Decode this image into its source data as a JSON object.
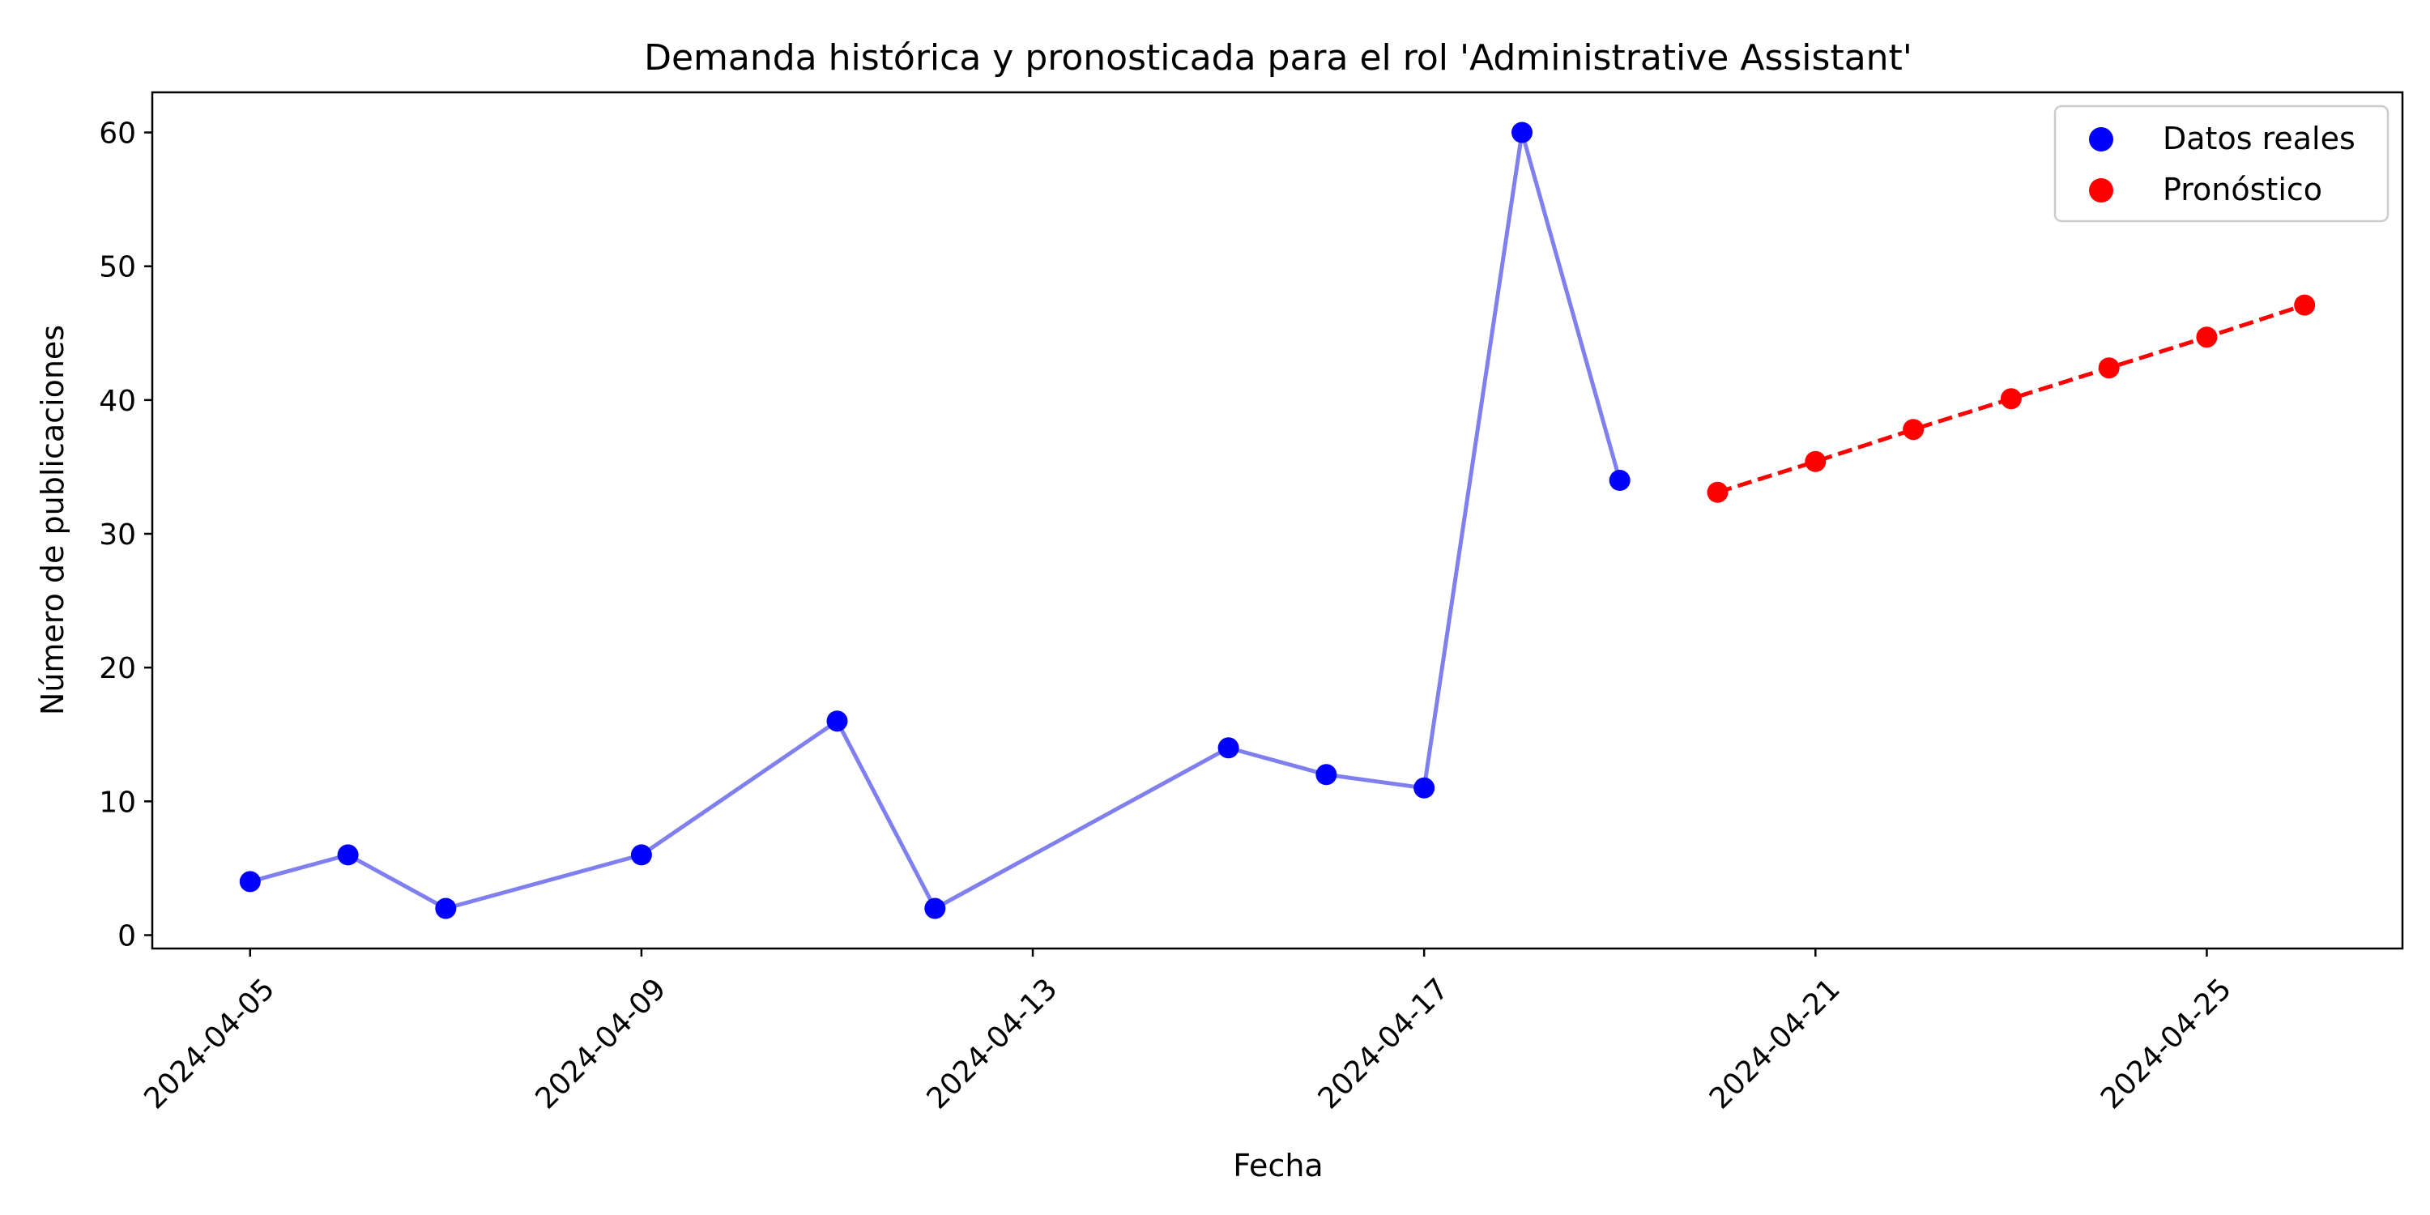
{
  "chart_data": {
    "type": "line",
    "title": "Demanda histórica y pronosticada para el rol 'Administrative Assistant'",
    "xlabel": "Fecha",
    "ylabel": "Número de publicaciones",
    "x_range": [
      "2024-04-04",
      "2024-04-27"
    ],
    "ylim": [
      -1,
      63
    ],
    "x_ticks": [
      "2024-04-05",
      "2024-04-09",
      "2024-04-13",
      "2024-04-17",
      "2024-04-21",
      "2024-04-25"
    ],
    "y_ticks": [
      0,
      10,
      20,
      30,
      40,
      50,
      60
    ],
    "grid": false,
    "legend": "top-right",
    "series": [
      {
        "name": "Datos reales",
        "color": "#0000ff",
        "line_color": "#7f7fef",
        "line_style": "solid",
        "points": [
          {
            "x": "2024-04-05",
            "y": 4
          },
          {
            "x": "2024-04-06",
            "y": 6
          },
          {
            "x": "2024-04-07",
            "y": 2
          },
          {
            "x": "2024-04-09",
            "y": 6
          },
          {
            "x": "2024-04-11",
            "y": 16
          },
          {
            "x": "2024-04-12",
            "y": 2
          },
          {
            "x": "2024-04-15",
            "y": 14
          },
          {
            "x": "2024-04-16",
            "y": 12
          },
          {
            "x": "2024-04-17",
            "y": 11
          },
          {
            "x": "2024-04-18",
            "y": 60
          },
          {
            "x": "2024-04-19",
            "y": 34
          }
        ]
      },
      {
        "name": "Pronóstico",
        "color": "#ff0000",
        "line_color": "#ff0000",
        "line_style": "dashed",
        "points": [
          {
            "x": "2024-04-20",
            "y": 33.1
          },
          {
            "x": "2024-04-21",
            "y": 35.4
          },
          {
            "x": "2024-04-22",
            "y": 37.8
          },
          {
            "x": "2024-04-23",
            "y": 40.1
          },
          {
            "x": "2024-04-24",
            "y": 42.4
          },
          {
            "x": "2024-04-25",
            "y": 44.7
          },
          {
            "x": "2024-04-26",
            "y": 47.1
          }
        ]
      }
    ]
  }
}
